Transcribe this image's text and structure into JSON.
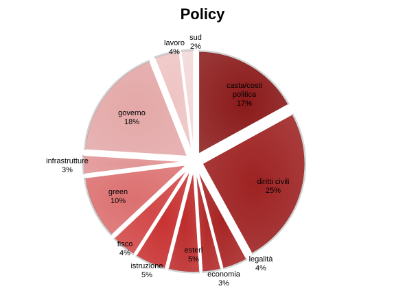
{
  "chart_data": {
    "type": "pie",
    "title": "Policy",
    "exploded": true,
    "slices": [
      {
        "label": "casta/costi politica",
        "value": 17,
        "value_label": "17%",
        "color": "#8b1a1a"
      },
      {
        "label": "diritti civili",
        "value": 25,
        "value_label": "25%",
        "color": "#9e2222"
      },
      {
        "label": "legalità",
        "value": 4,
        "value_label": "4%",
        "color": "#a82424"
      },
      {
        "label": "economia",
        "value": 3,
        "value_label": "3%",
        "color": "#b22828"
      },
      {
        "label": "esteri",
        "value": 5,
        "value_label": "5%",
        "color": "#bd2c2c"
      },
      {
        "label": "istruzione",
        "value": 5,
        "value_label": "5%",
        "color": "#c83232"
      },
      {
        "label": "fisco",
        "value": 4,
        "value_label": "4%",
        "color": "#d24848"
      },
      {
        "label": "green",
        "value": 10,
        "value_label": "10%",
        "color": "#dc7070"
      },
      {
        "label": "infrastrutture",
        "value": 3,
        "value_label": "3%",
        "color": "#e29595"
      },
      {
        "label": "governo",
        "value": 18,
        "value_label": "18%",
        "color": "#e4a8a8"
      },
      {
        "label": "lavoro",
        "value": 4,
        "value_label": "4%",
        "color": "#eec4c4"
      },
      {
        "label": "sud",
        "value": 2,
        "value_label": "2%",
        "color": "#f3d8d8"
      }
    ]
  }
}
